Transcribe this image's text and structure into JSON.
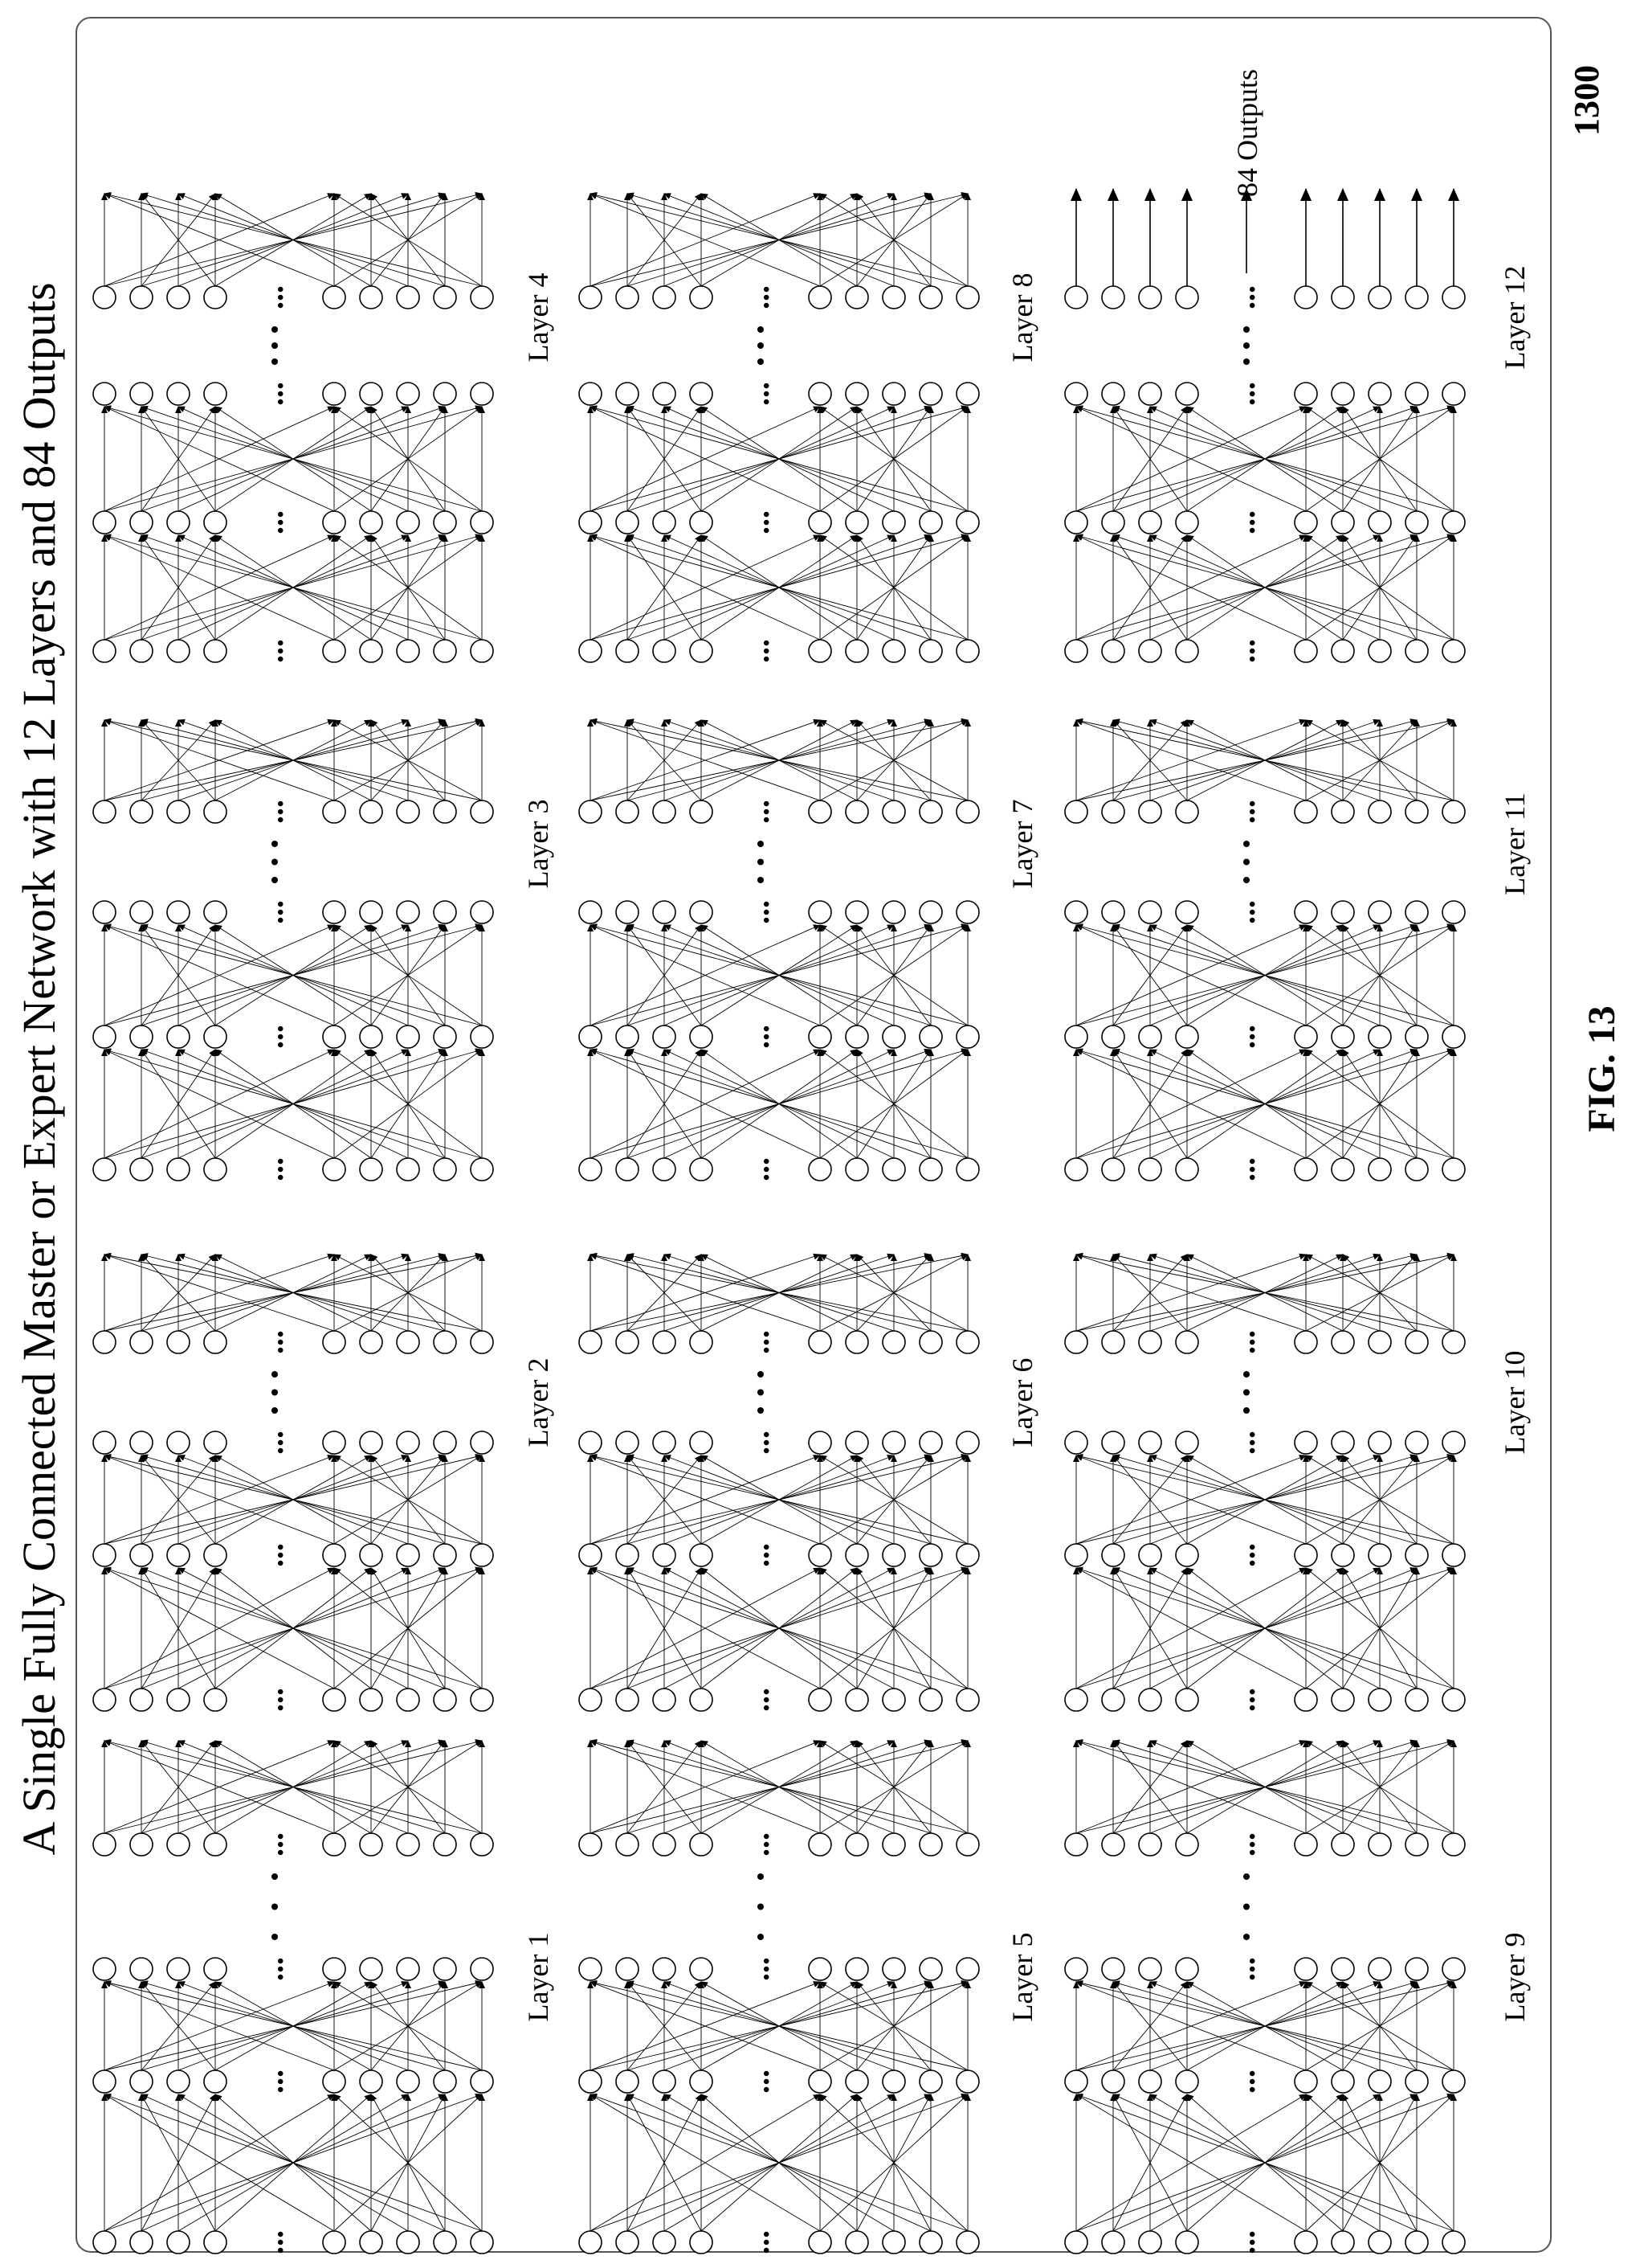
{
  "figure_number_ref": "1300",
  "title": "A Single Fully Connected Master or Expert Network with 12 Layers and 84 Outputs",
  "caption": "FIG. 13",
  "outputs_label": "84 Outputs",
  "layer_labels": [
    "Layer 1",
    "Layer 2",
    "Layer 3",
    "Layer 4",
    "Layer 5",
    "Layer 6",
    "Layer 7",
    "Layer 8",
    "Layer 9",
    "Layer 10",
    "Layer 11",
    "Layer 12"
  ],
  "ellipsis_glyph": "...",
  "colors": {
    "ink": "#000000",
    "node_fill": "#ffffff",
    "frame": "#555555"
  }
}
